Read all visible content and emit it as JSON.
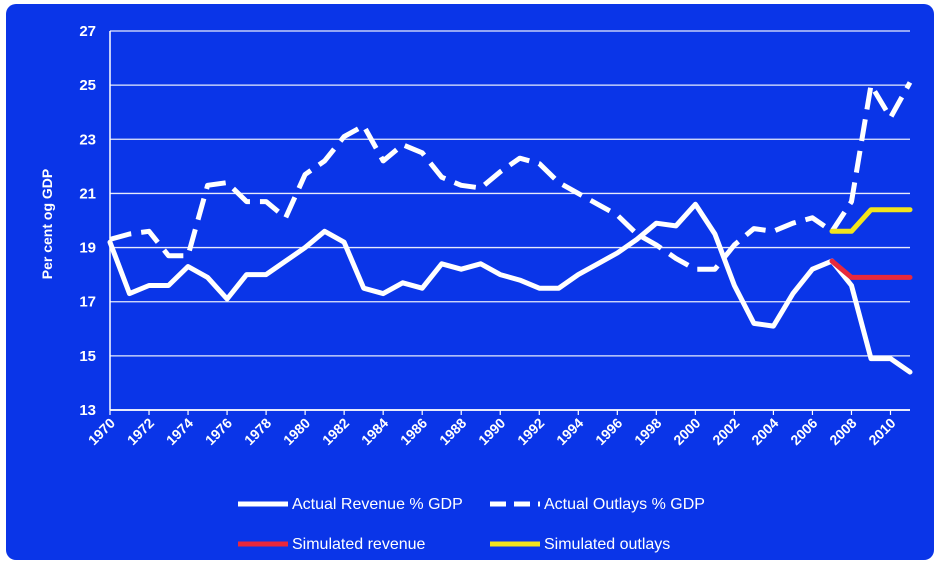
{
  "chart_data": {
    "type": "line",
    "ylabel": "Per cent og GDP",
    "ylim": [
      13,
      27
    ],
    "yticks": [
      13,
      15,
      17,
      19,
      21,
      23,
      25,
      27
    ],
    "xlim": [
      1970,
      2011
    ],
    "xticks": [
      1970,
      1972,
      1974,
      1976,
      1978,
      1980,
      1982,
      1984,
      1986,
      1988,
      1990,
      1992,
      1994,
      1996,
      1998,
      2000,
      2002,
      2004,
      2006,
      2008,
      2010
    ],
    "grid": "horizontal",
    "legend_position": "bottom",
    "colors": {
      "background": "#0a35e8",
      "grid": "#ffffff",
      "revenue": "#ffffff",
      "outlays": "#ffffff",
      "sim_revenue": "#e8283c",
      "sim_outlays": "#f2e41c"
    },
    "series": [
      {
        "name": "Actual Revenue % GDP",
        "style": "solid",
        "color": "#ffffff",
        "x": [
          1970,
          1971,
          1972,
          1973,
          1974,
          1975,
          1976,
          1977,
          1978,
          1979,
          1980,
          1981,
          1982,
          1983,
          1984,
          1985,
          1986,
          1987,
          1988,
          1989,
          1990,
          1991,
          1992,
          1993,
          1994,
          1995,
          1996,
          1997,
          1998,
          1999,
          2000,
          2001,
          2002,
          2003,
          2004,
          2005,
          2006,
          2007,
          2008,
          2009,
          2010,
          2011
        ],
        "values": [
          19.2,
          17.3,
          17.6,
          17.6,
          18.3,
          17.9,
          17.1,
          18.0,
          18.0,
          18.5,
          19.0,
          19.6,
          19.2,
          17.5,
          17.3,
          17.7,
          17.5,
          18.4,
          18.2,
          18.4,
          18.0,
          17.8,
          17.5,
          17.5,
          18.0,
          18.4,
          18.8,
          19.3,
          19.9,
          19.8,
          20.6,
          19.5,
          17.6,
          16.2,
          16.1,
          17.3,
          18.2,
          18.5,
          17.6,
          14.9,
          14.9,
          14.4
        ]
      },
      {
        "name": "Actual Outlays % GDP",
        "style": "dashed",
        "color": "#ffffff",
        "x": [
          1970,
          1971,
          1972,
          1973,
          1974,
          1975,
          1976,
          1977,
          1978,
          1979,
          1980,
          1981,
          1982,
          1983,
          1984,
          1985,
          1986,
          1987,
          1988,
          1989,
          1990,
          1991,
          1992,
          1993,
          1994,
          1995,
          1996,
          1997,
          1998,
          1999,
          2000,
          2001,
          2002,
          2003,
          2004,
          2005,
          2006,
          2007,
          2008,
          2009,
          2010,
          2011
        ],
        "values": [
          19.3,
          19.5,
          19.6,
          18.7,
          18.7,
          21.3,
          21.4,
          20.7,
          20.7,
          20.1,
          21.7,
          22.2,
          23.1,
          23.5,
          22.2,
          22.8,
          22.5,
          21.6,
          21.3,
          21.2,
          21.8,
          22.3,
          22.1,
          21.4,
          21.0,
          20.6,
          20.2,
          19.5,
          19.1,
          18.6,
          18.2,
          18.2,
          19.1,
          19.7,
          19.6,
          19.9,
          20.1,
          19.6,
          20.7,
          25.0,
          23.8,
          25.1
        ]
      },
      {
        "name": "Simulated revenue",
        "style": "solid",
        "color": "#e8283c",
        "x": [
          2007,
          2008,
          2009,
          2010,
          2011
        ],
        "values": [
          18.5,
          17.9,
          17.9,
          17.9,
          17.9
        ]
      },
      {
        "name": "Simulated outlays",
        "style": "solid",
        "color": "#f2e41c",
        "x": [
          2007,
          2008,
          2009,
          2010,
          2011
        ],
        "values": [
          19.6,
          19.6,
          20.4,
          20.4,
          20.4
        ]
      }
    ]
  }
}
